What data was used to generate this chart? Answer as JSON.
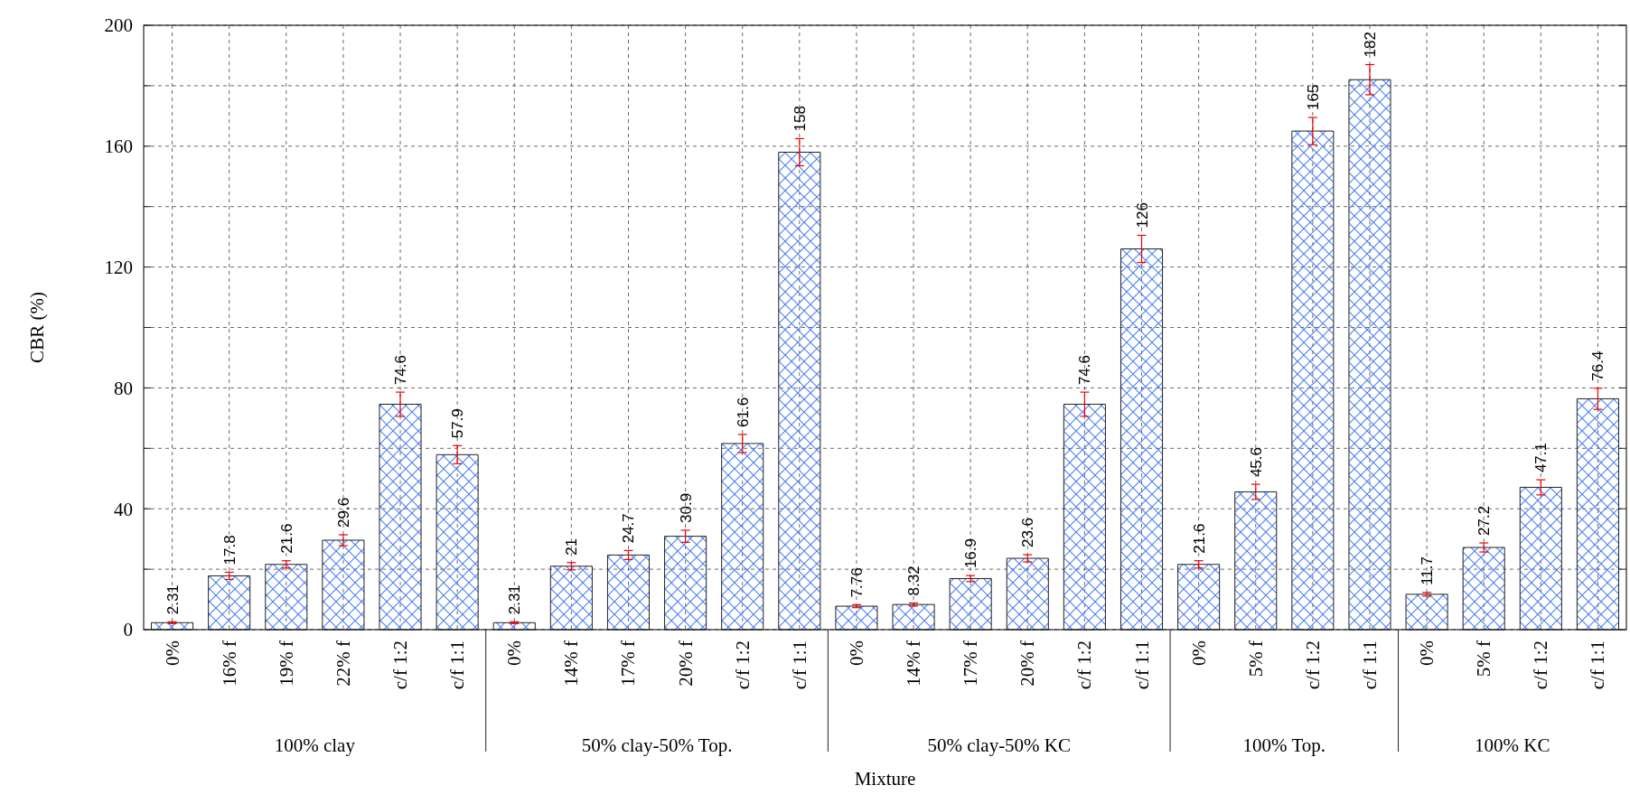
{
  "chart_data": {
    "type": "bar",
    "xlabel": "Mixture",
    "ylabel": "CBR (%)",
    "categories": [
      "0%",
      "16% f",
      "19% f",
      "22% f",
      "c/f 1:2",
      "c/f 1:1",
      "0%",
      "14% f",
      "17% f",
      "20% f",
      "c/f 1:2",
      "c/f 1:1",
      "0%",
      "14% f",
      "17% f",
      "20% f",
      "c/f 1:2",
      "c/f 1:1",
      "0%",
      "5% f",
      "c/f 1:2",
      "c/f 1:1",
      "0%",
      "5% f",
      "c/f 1:2",
      "c/f 1:1"
    ],
    "values": [
      2.31,
      17.8,
      21.6,
      29.6,
      74.6,
      57.9,
      2.31,
      21,
      24.7,
      30.9,
      61.6,
      158,
      7.76,
      8.32,
      16.9,
      23.6,
      74.6,
      126,
      21.6,
      45.6,
      165,
      182,
      11.7,
      27.2,
      47.1,
      76.4
    ],
    "errors": [
      0.3,
      1.2,
      1.2,
      1.8,
      4,
      3,
      0.3,
      1.2,
      1.5,
      2,
      3,
      4.5,
      0.5,
      0.5,
      1,
      1.2,
      4,
      4.5,
      1.2,
      2.5,
      4.5,
      5,
      0.6,
      1.5,
      2.5,
      3.5
    ],
    "color": "#4a7ff0",
    "data_labels": true,
    "ylim": [
      0,
      200
    ],
    "yticks": [
      0,
      {
        "value": 20,
        "label": null
      },
      40,
      {
        "value": 60,
        "label": null
      },
      80,
      {
        "value": 100,
        "label": null
      },
      120,
      {
        "value": 140,
        "label": null
      },
      160,
      {
        "value": 180,
        "label": null
      },
      200
    ],
    "grid": true,
    "annotations": [
      "100% clay",
      "50% clay-50% Top.",
      "50% clay-50% KC",
      "100% Top.",
      "100% KC"
    ]
  }
}
